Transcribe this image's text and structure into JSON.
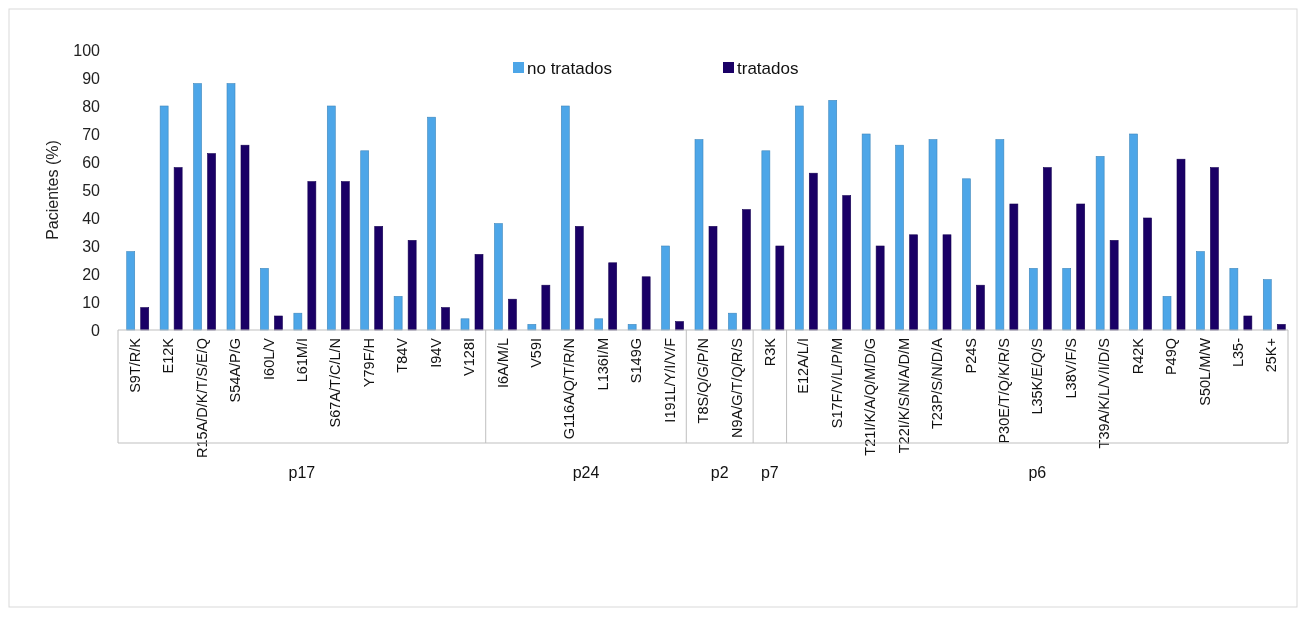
{
  "chart_data": {
    "type": "bar",
    "ylabel": "Pacientes (%)",
    "categories": [
      "S9T/R/K",
      "E12K",
      "R15A/D/K/T/S/E/Q",
      "S54A/P/G",
      "I60L/V",
      "L61M/I",
      "S67A/T/C/L/N",
      "Y79F/H",
      "T84V",
      "I94V",
      "V128I",
      "I6A/M/L",
      "V59I",
      "G116A/Q/T/R/N",
      "L136I/M",
      "S149G",
      "I191L/Y/I/V/F",
      "T8S/Q/G/P/N",
      "N9A/G/T/Q/R/S",
      "R3K",
      "E12A/L/I",
      "S17F/V/L/P/M",
      "T21I/K/A/Q/M/D/G",
      "T22I/K/S/N/A/D/M",
      "T23P/S/N/D/A",
      "P24S",
      "P30E/T/Q/K/R/S",
      "L35K/E/Q/S",
      "L38V/F/S",
      "T39A/K/L/V/I/D/S",
      "R42K",
      "P49Q",
      "S50L/M/W",
      "L35-",
      "25K+"
    ],
    "series": [
      {
        "name": "no tratados",
        "color": "#4da6e8",
        "values": [
          28,
          80,
          88,
          88,
          22,
          6,
          80,
          64,
          12,
          76,
          4,
          38,
          2,
          80,
          4,
          2,
          30,
          68,
          6,
          64,
          80,
          82,
          70,
          66,
          68,
          54,
          68,
          22,
          22,
          62,
          70,
          12,
          28,
          22,
          18
        ]
      },
      {
        "name": "tratados",
        "color": "#1a0066",
        "values": [
          8,
          58,
          63,
          66,
          5,
          53,
          53,
          37,
          32,
          8,
          27,
          11,
          16,
          37,
          24,
          19,
          3,
          37,
          43,
          30,
          56,
          48,
          30,
          34,
          34,
          16,
          45,
          58,
          45,
          32,
          40,
          61,
          58,
          5,
          2
        ]
      }
    ],
    "annotations": [
      "p17",
      "p24",
      "p2",
      "p7",
      "p6"
    ],
    "ylim": [
      0,
      100
    ],
    "yticks": [
      0,
      10,
      20,
      30,
      40,
      50,
      60,
      70,
      80,
      90,
      100
    ],
    "legend": "top",
    "grid": false
  }
}
